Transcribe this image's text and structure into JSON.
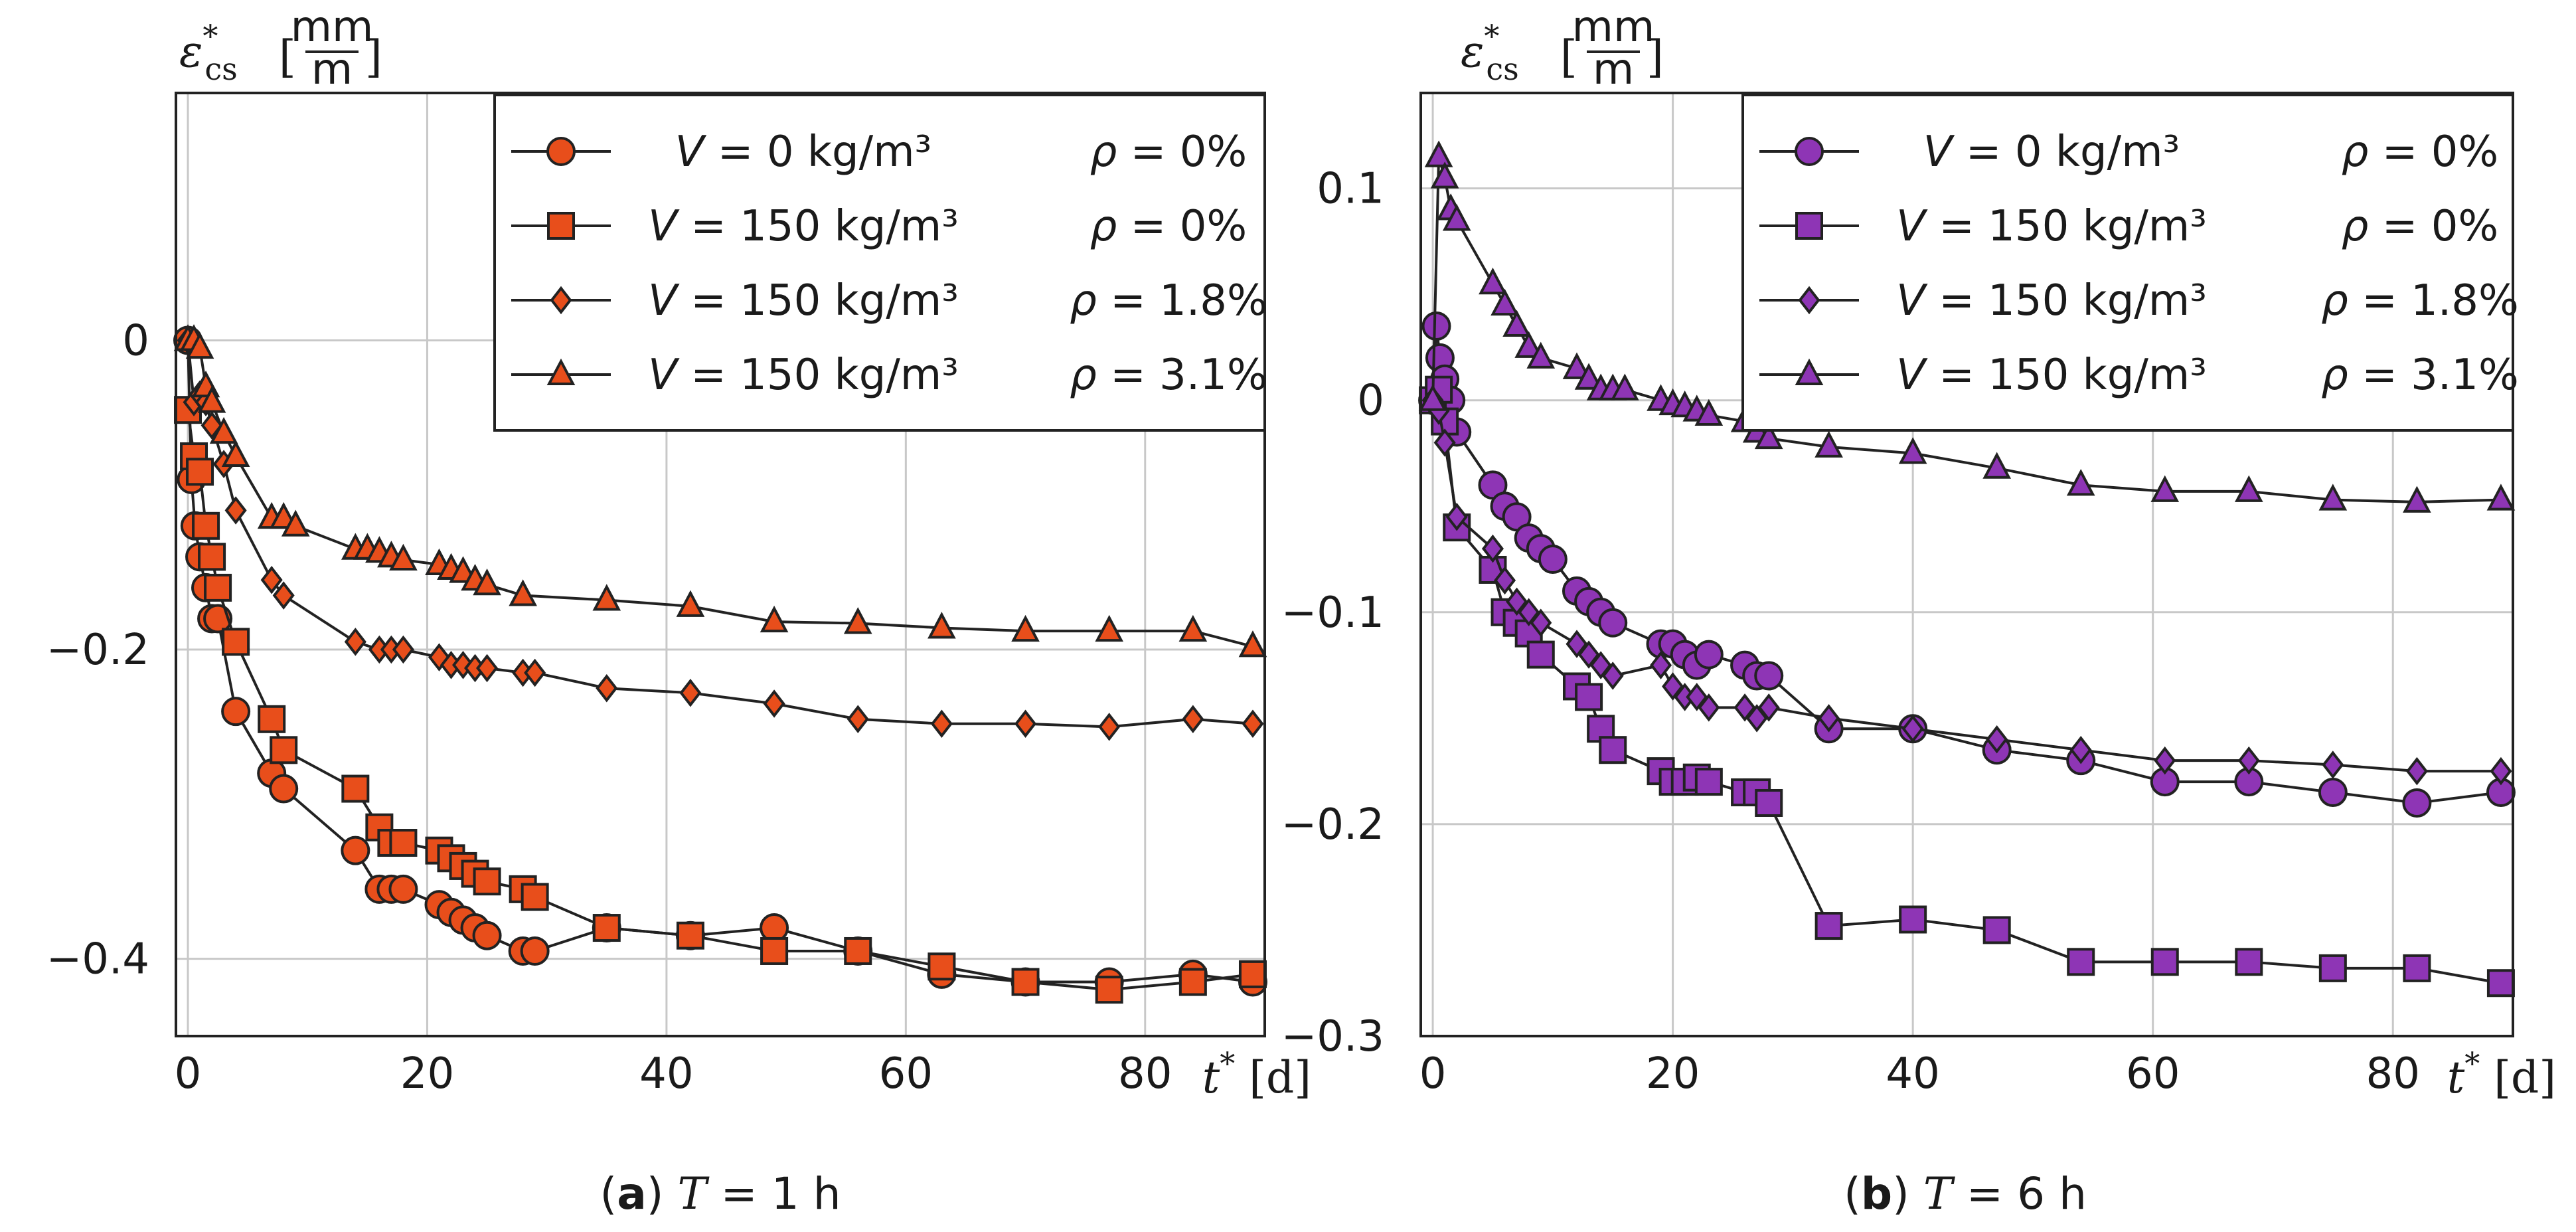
{
  "chart_data": [
    {
      "type": "line",
      "caption": {
        "tag": "a",
        "text": "T = 1 h"
      },
      "xlabel": "t* [d]",
      "ylabel": "ε*cs [mm/m]",
      "ylabel_unit": "mm/m",
      "xlim": [
        -1,
        90
      ],
      "ylim": [
        -0.45,
        0.16
      ],
      "xticks": [
        "0",
        "20",
        "40",
        "60",
        "80"
      ],
      "xtick_values": [
        0,
        20,
        40,
        60,
        80
      ],
      "yticks": [
        "0",
        "−0.2",
        "−0.4"
      ],
      "ytick_values": [
        0,
        -0.2,
        -0.4
      ],
      "grid": true,
      "legend_position": "top-right",
      "colors": {
        "fill": "#e84e1b",
        "stroke": "#222222"
      },
      "series": [
        {
          "name": "V = 0 kg/m3  ρ = 0%",
          "v_label": "V = 0 kg/m³",
          "rho_label": "ρ = 0%",
          "marker": "circle",
          "x": [
            0,
            0.3,
            0.6,
            1,
            1.5,
            2,
            2.5,
            4,
            7,
            8,
            14,
            16,
            17,
            18,
            21,
            22,
            23,
            24,
            25,
            28,
            29,
            35,
            42,
            49,
            56,
            63,
            70,
            77,
            84,
            89
          ],
          "y": [
            0,
            -0.09,
            -0.12,
            -0.14,
            -0.16,
            -0.18,
            -0.18,
            -0.24,
            -0.28,
            -0.29,
            -0.33,
            -0.355,
            -0.355,
            -0.355,
            -0.365,
            -0.37,
            -0.375,
            -0.38,
            -0.385,
            -0.395,
            -0.395,
            -0.38,
            -0.385,
            -0.38,
            -0.395,
            -0.41,
            -0.415,
            -0.415,
            -0.41,
            -0.415
          ]
        },
        {
          "name": "V = 150 kg/m3  ρ = 0%",
          "v_label": "V = 150 kg/m³",
          "rho_label": "ρ = 0%",
          "marker": "square",
          "x": [
            0,
            0.5,
            1,
            1.5,
            2,
            2.5,
            4,
            7,
            8,
            14,
            16,
            17,
            18,
            21,
            22,
            23,
            24,
            25,
            28,
            29,
            35,
            42,
            49,
            56,
            63,
            70,
            77,
            84,
            89
          ],
          "y": [
            -0.045,
            -0.075,
            -0.085,
            -0.12,
            -0.14,
            -0.16,
            -0.195,
            -0.245,
            -0.265,
            -0.29,
            -0.315,
            -0.325,
            -0.325,
            -0.33,
            -0.335,
            -0.34,
            -0.345,
            -0.35,
            -0.355,
            -0.36,
            -0.38,
            -0.385,
            -0.395,
            -0.395,
            -0.405,
            -0.415,
            -0.42,
            -0.415,
            -0.41
          ]
        },
        {
          "name": "V = 150 kg/m3  ρ = 1.8%",
          "v_label": "V = 150 kg/m³",
          "rho_label": "ρ = 1.8%",
          "marker": "diamond",
          "x": [
            0,
            0.5,
            1,
            1.5,
            2,
            3,
            4,
            7,
            8,
            14,
            16,
            17,
            18,
            21,
            22,
            23,
            24,
            25,
            28,
            29,
            35,
            42,
            49,
            56,
            63,
            70,
            77,
            84,
            89
          ],
          "y": [
            0,
            -0.04,
            -0.035,
            -0.04,
            -0.055,
            -0.08,
            -0.11,
            -0.155,
            -0.165,
            -0.195,
            -0.2,
            -0.2,
            -0.2,
            -0.205,
            -0.21,
            -0.21,
            -0.212,
            -0.212,
            -0.215,
            -0.215,
            -0.225,
            -0.228,
            -0.235,
            -0.245,
            -0.248,
            -0.248,
            -0.25,
            -0.245,
            -0.248
          ]
        },
        {
          "name": "V = 150 kg/m3  ρ = 3.1%",
          "v_label": "V = 150 kg/m³",
          "rho_label": "ρ = 3.1%",
          "marker": "triangle",
          "x": [
            0,
            0.5,
            1,
            1.5,
            2,
            3,
            4,
            7,
            8,
            9,
            14,
            15,
            16,
            17,
            18,
            21,
            22,
            23,
            24,
            25,
            28,
            35,
            42,
            49,
            56,
            63,
            70,
            77,
            84,
            89
          ],
          "y": [
            0,
            0,
            -0.005,
            -0.03,
            -0.04,
            -0.06,
            -0.075,
            -0.115,
            -0.115,
            -0.12,
            -0.135,
            -0.135,
            -0.137,
            -0.14,
            -0.142,
            -0.145,
            -0.148,
            -0.15,
            -0.155,
            -0.158,
            -0.165,
            -0.168,
            -0.172,
            -0.182,
            -0.183,
            -0.186,
            -0.188,
            -0.188,
            -0.188,
            -0.198
          ]
        }
      ]
    },
    {
      "type": "line",
      "caption": {
        "tag": "b",
        "text": "T = 6 h"
      },
      "xlabel": "t* [d]",
      "ylabel": "ε*cs [mm/m]",
      "ylabel_unit": "mm/m",
      "xlim": [
        -1,
        90
      ],
      "ylim": [
        -0.3,
        0.145
      ],
      "xticks": [
        "0",
        "20",
        "40",
        "60",
        "80"
      ],
      "xtick_values": [
        0,
        20,
        40,
        60,
        80
      ],
      "yticks": [
        "0.1",
        "0",
        "−0.1",
        "−0.2",
        "−0.3"
      ],
      "ytick_values": [
        0.1,
        0,
        -0.1,
        -0.2,
        -0.3
      ],
      "grid": true,
      "legend_position": "top-right",
      "colors": {
        "fill": "#8e35b5",
        "stroke": "#222222"
      },
      "series": [
        {
          "name": "V = 0 kg/m3  ρ = 0%",
          "v_label": "V = 0 kg/m³",
          "rho_label": "ρ = 0%",
          "marker": "circle",
          "x": [
            0,
            0.3,
            0.6,
            1,
            1.5,
            2,
            5,
            6,
            7,
            8,
            9,
            10,
            12,
            13,
            14,
            15,
            19,
            20,
            21,
            22,
            23,
            26,
            27,
            28,
            33,
            40,
            47,
            54,
            61,
            68,
            75,
            82,
            89
          ],
          "y": [
            0,
            0.035,
            0.02,
            0.01,
            0,
            -0.015,
            -0.04,
            -0.05,
            -0.055,
            -0.065,
            -0.07,
            -0.075,
            -0.09,
            -0.095,
            -0.1,
            -0.105,
            -0.115,
            -0.115,
            -0.12,
            -0.125,
            -0.12,
            -0.125,
            -0.13,
            -0.13,
            -0.155,
            -0.155,
            -0.165,
            -0.17,
            -0.18,
            -0.18,
            -0.185,
            -0.19,
            -0.185
          ]
        },
        {
          "name": "V = 150 kg/m3  ρ = 0%",
          "v_label": "V = 150 kg/m³",
          "rho_label": "ρ = 0%",
          "marker": "square",
          "x": [
            0,
            0.5,
            1,
            2,
            5,
            6,
            7,
            8,
            9,
            12,
            13,
            14,
            15,
            19,
            20,
            21,
            22,
            23,
            26,
            27,
            28,
            33,
            40,
            47,
            54,
            61,
            68,
            75,
            82,
            89
          ],
          "y": [
            0,
            0.005,
            -0.01,
            -0.06,
            -0.08,
            -0.1,
            -0.105,
            -0.11,
            -0.12,
            -0.135,
            -0.14,
            -0.155,
            -0.165,
            -0.175,
            -0.18,
            -0.18,
            -0.178,
            -0.18,
            -0.185,
            -0.185,
            -0.19,
            -0.248,
            -0.245,
            -0.25,
            -0.265,
            -0.265,
            -0.265,
            -0.268,
            -0.268,
            -0.275
          ]
        },
        {
          "name": "V = 150 kg/m3  ρ = 1.8%",
          "v_label": "V = 150 kg/m³",
          "rho_label": "ρ = 1.8%",
          "marker": "diamond",
          "x": [
            0,
            0.5,
            1,
            2,
            5,
            6,
            7,
            8,
            9,
            12,
            13,
            14,
            15,
            19,
            20,
            21,
            22,
            23,
            26,
            27,
            28,
            33,
            40,
            47,
            54,
            61,
            68,
            75,
            82,
            89
          ],
          "y": [
            0,
            -0.005,
            -0.02,
            -0.055,
            -0.07,
            -0.085,
            -0.095,
            -0.1,
            -0.105,
            -0.115,
            -0.12,
            -0.125,
            -0.13,
            -0.125,
            -0.135,
            -0.14,
            -0.14,
            -0.145,
            -0.145,
            -0.15,
            -0.145,
            -0.15,
            -0.155,
            -0.16,
            -0.165,
            -0.17,
            -0.17,
            -0.172,
            -0.175,
            -0.175
          ]
        },
        {
          "name": "V = 150 kg/m3  ρ = 3.1%",
          "v_label": "V = 150 kg/m³",
          "rho_label": "ρ = 3.1%",
          "marker": "triangle",
          "x": [
            0,
            0.5,
            1,
            1.5,
            2,
            5,
            6,
            7,
            8,
            9,
            12,
            13,
            14,
            15,
            16,
            19,
            20,
            21,
            22,
            23,
            26,
            27,
            28,
            33,
            40,
            47,
            54,
            61,
            68,
            75,
            82,
            89
          ],
          "y": [
            0,
            0.115,
            0.105,
            0.09,
            0.085,
            0.055,
            0.045,
            0.035,
            0.025,
            0.02,
            0.015,
            0.01,
            0.005,
            0.005,
            0.005,
            0,
            -0.002,
            -0.003,
            -0.005,
            -0.007,
            -0.01,
            -0.015,
            -0.018,
            -0.022,
            -0.025,
            -0.032,
            -0.04,
            -0.043,
            -0.043,
            -0.047,
            -0.048,
            -0.047
          ]
        }
      ]
    }
  ]
}
